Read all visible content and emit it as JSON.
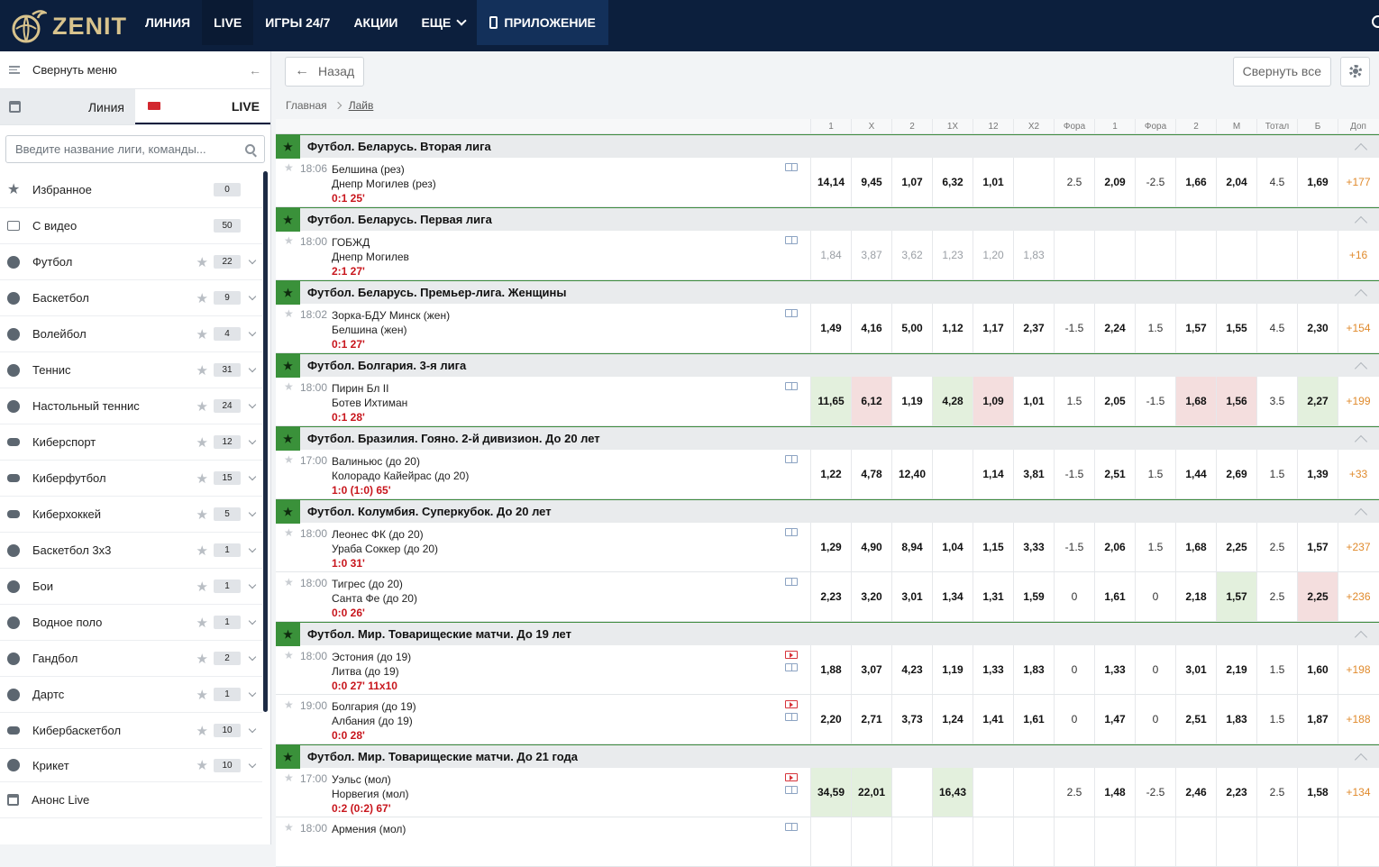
{
  "header": {
    "logo_text": "ZENIT",
    "nav": [
      {
        "label": "ЛИНИЯ"
      },
      {
        "label": "LIVE"
      },
      {
        "label": "ИГРЫ 24/7"
      },
      {
        "label": "АКЦИИ"
      },
      {
        "label": "ЕЩЕ"
      },
      {
        "label": "ПРИЛОЖЕНИЕ"
      }
    ]
  },
  "sidebar": {
    "collapse_label": "Свернуть меню",
    "tab_line": "Линия",
    "tab_live": "LIVE",
    "search_placeholder": "Введите название лиги, команды...",
    "items": [
      {
        "label": "Избранное",
        "count": "0",
        "icon": "star-icon"
      },
      {
        "label": "С видео",
        "count": "50",
        "icon": "video-icon"
      },
      {
        "label": "Футбол",
        "count": "22",
        "icon": "football-icon"
      },
      {
        "label": "Баскетбол",
        "count": "9",
        "icon": "basketball-icon"
      },
      {
        "label": "Волейбол",
        "count": "4",
        "icon": "volleyball-icon"
      },
      {
        "label": "Теннис",
        "count": "31",
        "icon": "tennis-icon"
      },
      {
        "label": "Настольный теннис",
        "count": "24",
        "icon": "table-tennis-icon"
      },
      {
        "label": "Киберспорт",
        "count": "12",
        "icon": "gamepad-icon"
      },
      {
        "label": "Киберфутбол",
        "count": "15",
        "icon": "gamepad-icon"
      },
      {
        "label": "Киберхоккей",
        "count": "5",
        "icon": "gamepad-icon"
      },
      {
        "label": "Баскетбол 3х3",
        "count": "1",
        "icon": "basketball-3x3-icon"
      },
      {
        "label": "Бои",
        "count": "1",
        "icon": "boxing-glove-icon"
      },
      {
        "label": "Водное поло",
        "count": "1",
        "icon": "water-polo-icon"
      },
      {
        "label": "Гандбол",
        "count": "2",
        "icon": "handball-icon"
      },
      {
        "label": "Дартс",
        "count": "1",
        "icon": "darts-icon"
      },
      {
        "label": "Кибербаскетбол",
        "count": "10",
        "icon": "gamepad-icon"
      },
      {
        "label": "Крикет",
        "count": "10",
        "icon": "cricket-icon"
      },
      {
        "label": "Анонс Live",
        "count": "",
        "icon": "calendar-icon"
      }
    ]
  },
  "toolbar": {
    "back_label": "Назад",
    "collapse_all_label": "Свернуть все"
  },
  "breadcrumb": {
    "home": "Главная",
    "current": "Лайв"
  },
  "columns": [
    "1",
    "X",
    "2",
    "1X",
    "12",
    "X2",
    "Фора",
    "1",
    "Фора",
    "2",
    "М",
    "Тотал",
    "Б",
    "Доп"
  ],
  "leagues": [
    {
      "name": "Футбол. Беларусь. Вторая лига",
      "events": [
        {
          "time": "18:06",
          "team1": "Белшина (рез)",
          "team2": "Днепр Могилев (рез)",
          "score": "0:1 25'",
          "odds": [
            "14,14",
            "9,45",
            "1,07",
            "6,32",
            "1,01",
            "",
            "2.5",
            "2,09",
            "-2.5",
            "1,66",
            "2,04",
            "4.5",
            "1,69",
            "+177"
          ]
        }
      ]
    },
    {
      "name": "Футбол. Беларусь. Первая лига",
      "events": [
        {
          "time": "18:00",
          "team1": "ГОБЖД",
          "team2": "Днепр Могилев",
          "score": "2:1 27'",
          "odds": [
            "1,84",
            "3,87",
            "3,62",
            "1,23",
            "1,20",
            "1,83",
            "",
            "",
            "",
            "",
            "",
            "",
            "",
            "+16"
          ],
          "dim": true
        }
      ]
    },
    {
      "name": "Футбол. Беларусь. Премьер-лига. Женщины",
      "events": [
        {
          "time": "18:02",
          "team1": "Зорка-БДУ Минск (жен)",
          "team2": "Белшина (жен)",
          "score": "0:1 27'",
          "odds": [
            "1,49",
            "4,16",
            "5,00",
            "1,12",
            "1,17",
            "2,37",
            "-1.5",
            "2,24",
            "1.5",
            "1,57",
            "1,55",
            "4.5",
            "2,30",
            "+154"
          ]
        }
      ]
    },
    {
      "name": "Футбол. Болгария. 3-я лига",
      "events": [
        {
          "time": "18:00",
          "team1": "Пирин Бл II",
          "team2": "Ботев Ихтиман",
          "score": "0:1 28'",
          "odds": [
            "11,65",
            "6,12",
            "1,19",
            "4,28",
            "1,09",
            "1,01",
            "1.5",
            "2,05",
            "-1.5",
            "1,68",
            "1,56",
            "3.5",
            "2,27",
            "+199"
          ],
          "trend": [
            "up",
            "down",
            "",
            "up",
            "down",
            "",
            "",
            "",
            "",
            "down",
            "down",
            "",
            "up",
            ""
          ]
        }
      ]
    },
    {
      "name": "Футбол. Бразилия. Гояно. 2-й дивизион. До 20 лет",
      "events": [
        {
          "time": "17:00",
          "team1": "Валиньюс (до 20)",
          "team2": "Колорадо Кайейрас (до 20)",
          "score": "1:0 (1:0) 65'",
          "odds": [
            "1,22",
            "4,78",
            "12,40",
            "",
            "1,14",
            "3,81",
            "-1.5",
            "2,51",
            "1.5",
            "1,44",
            "2,69",
            "1.5",
            "1,39",
            "+33"
          ]
        }
      ]
    },
    {
      "name": "Футбол. Колумбия. Суперкубок. До 20 лет",
      "events": [
        {
          "time": "18:00",
          "team1": "Леонес ФК (до 20)",
          "team2": "Ураба Соккер (до 20)",
          "score": "1:0 31'",
          "odds": [
            "1,29",
            "4,90",
            "8,94",
            "1,04",
            "1,15",
            "3,33",
            "-1.5",
            "2,06",
            "1.5",
            "1,68",
            "2,25",
            "2.5",
            "1,57",
            "+237"
          ]
        },
        {
          "time": "18:00",
          "team1": "Тигрес (до 20)",
          "team2": "Санта Фе (до 20)",
          "score": "0:0 26'",
          "odds": [
            "2,23",
            "3,20",
            "3,01",
            "1,34",
            "1,31",
            "1,59",
            "0",
            "1,61",
            "0",
            "2,18",
            "1,57",
            "2.5",
            "2,25",
            "+236"
          ],
          "trend": [
            "",
            "",
            "",
            "",
            "",
            "",
            "",
            "",
            "",
            "",
            "up",
            "",
            "down",
            ""
          ]
        }
      ]
    },
    {
      "name": "Футбол. Мир. Товарищеские матчи. До 19 лет",
      "events": [
        {
          "time": "18:00",
          "team1": "Эстония (до 19)",
          "team2": "Литва (до 19)",
          "score": "0:0 27' 11x10",
          "video": true,
          "odds": [
            "1,88",
            "3,07",
            "4,23",
            "1,19",
            "1,33",
            "1,83",
            "0",
            "1,33",
            "0",
            "3,01",
            "2,19",
            "1.5",
            "1,60",
            "+198"
          ]
        },
        {
          "time": "19:00",
          "team1": "Болгария (до 19)",
          "team2": "Албания (до 19)",
          "score": "0:0 28'",
          "video": true,
          "odds": [
            "2,20",
            "2,71",
            "3,73",
            "1,24",
            "1,41",
            "1,61",
            "0",
            "1,47",
            "0",
            "2,51",
            "1,83",
            "1.5",
            "1,87",
            "+188"
          ]
        }
      ]
    },
    {
      "name": "Футбол. Мир. Товарищеские матчи. До 21 года",
      "events": [
        {
          "time": "17:00",
          "team1": "Уэльс (мол)",
          "team2": "Норвегия (мол)",
          "score": "0:2 (0:2) 67'",
          "video": true,
          "odds": [
            "34,59",
            "22,01",
            "",
            "16,43",
            "",
            "",
            "2.5",
            "1,48",
            "-2.5",
            "2,46",
            "2,23",
            "2.5",
            "1,58",
            "+134"
          ],
          "trend": [
            "up",
            "up",
            "",
            "up",
            "",
            "",
            "",
            "",
            "",
            "",
            "",
            "",
            "",
            ""
          ]
        },
        {
          "time": "18:00",
          "team1": "Армения (мол)",
          "team2": "",
          "score": "",
          "odds": [
            "",
            "",
            "",
            "",
            "",
            "",
            "",
            "",
            "",
            "",
            "",
            "",
            "",
            ""
          ]
        }
      ]
    }
  ]
}
